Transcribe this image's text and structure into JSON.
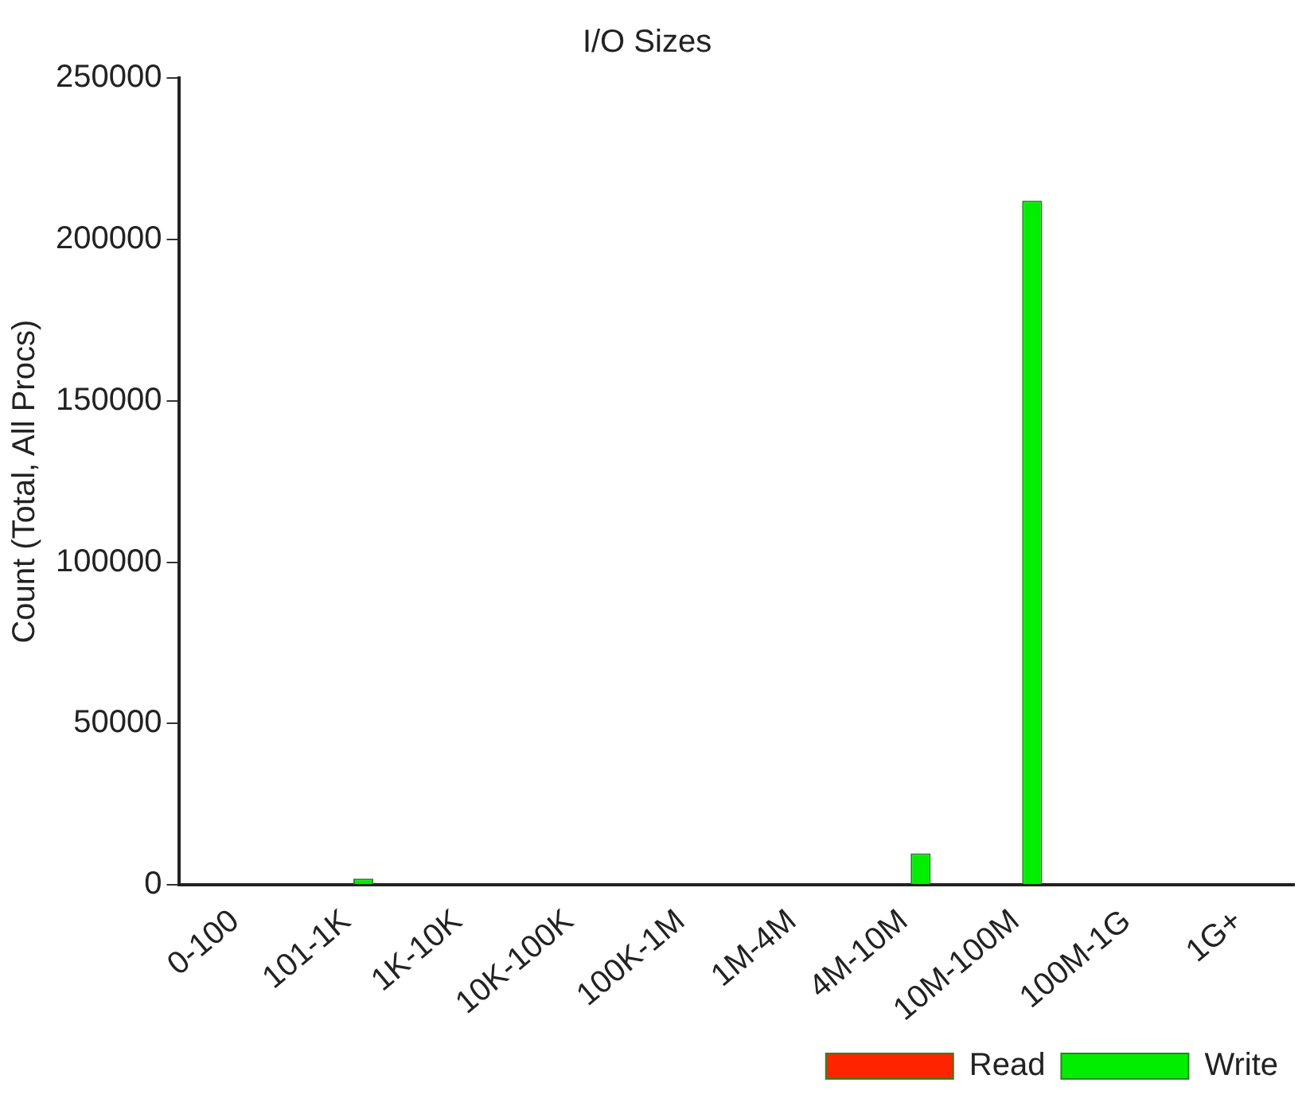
{
  "chart_data": {
    "type": "bar",
    "title": "I/O Sizes",
    "ylabel": "Count (Total, All Procs)",
    "categories": [
      "0-100",
      "101-1K",
      "1K-10K",
      "10K-100K",
      "100K-1M",
      "1M-4M",
      "4M-10M",
      "10M-100M",
      "100M-1G",
      "1G+"
    ],
    "series": [
      {
        "name": "Read",
        "color": "#ff2400",
        "values": [
          0,
          0,
          0,
          0,
          0,
          0,
          0,
          0,
          0,
          0
        ]
      },
      {
        "name": "Write",
        "color": "#00ee00",
        "values": [
          0,
          2000,
          0,
          0,
          0,
          0,
          9800,
          212000,
          0,
          0
        ]
      }
    ],
    "ylim": [
      0,
      250000
    ],
    "yticks": [
      0,
      50000,
      100000,
      150000,
      200000,
      250000
    ],
    "grid": false,
    "legend": "bottom right"
  }
}
